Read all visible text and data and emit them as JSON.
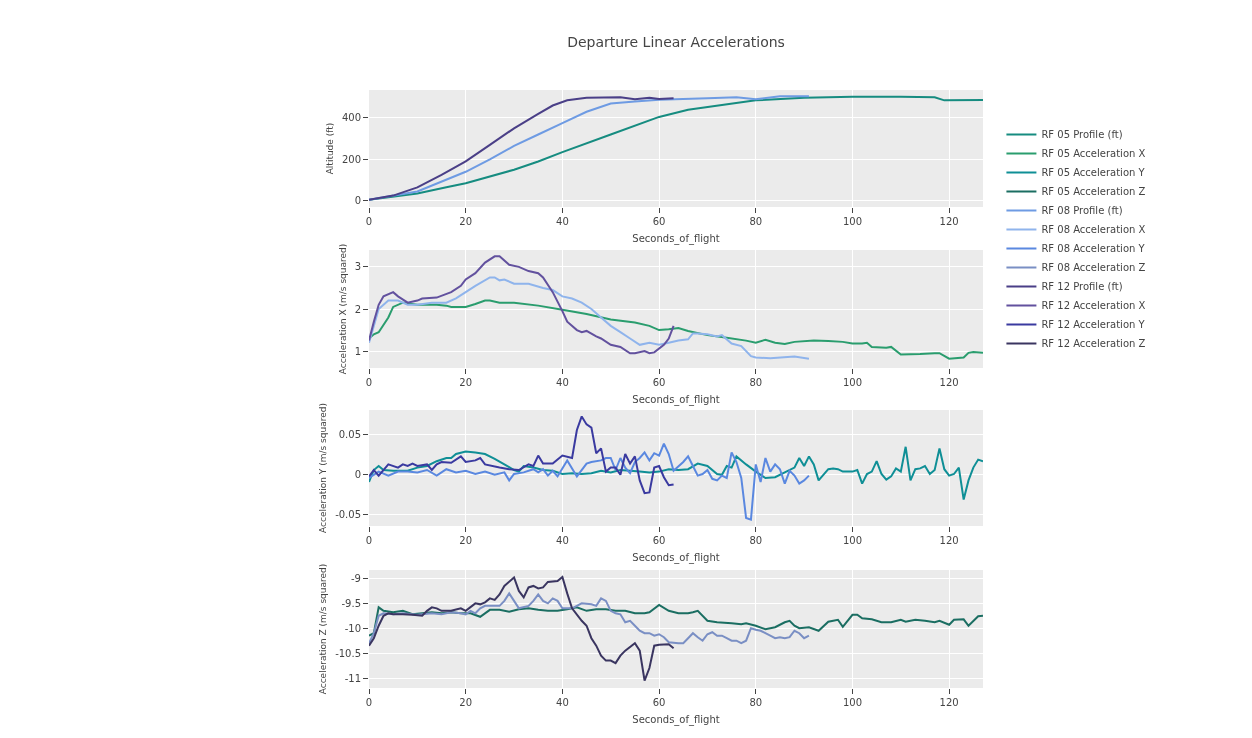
{
  "chart_data": [
    {
      "type": "line",
      "title": "Departure Linear Accelerations",
      "xlabel": "Seconds_of_flight",
      "ylabel": "Altitude (ft)",
      "xlim": [
        0,
        127
      ],
      "xticks": [
        0,
        20,
        40,
        60,
        80,
        100,
        120
      ],
      "ylim": [
        -30,
        535
      ],
      "yticks": [
        0,
        200,
        400
      ],
      "grid": true,
      "legend": "right",
      "series": [
        {
          "name": "RF 05 Profile (ft)",
          "color": "#168c80",
          "x": [
            0,
            10,
            16,
            20,
            30,
            35,
            40,
            50,
            60,
            66,
            80,
            90,
            100,
            110,
            117,
            119,
            127
          ],
          "values": [
            5,
            35,
            65,
            85,
            150,
            190,
            235,
            320,
            405,
            440,
            485,
            497,
            502,
            502,
            500,
            485,
            487
          ]
        },
        {
          "name": "RF 08 Profile (ft)",
          "color": "#6e9be3",
          "x": [
            0,
            10,
            20,
            25,
            30,
            35,
            40,
            45,
            50,
            55,
            60,
            70,
            76,
            80,
            85,
            91
          ],
          "values": [
            5,
            45,
            140,
            200,
            265,
            320,
            375,
            430,
            470,
            480,
            488,
            495,
            500,
            490,
            505,
            505
          ]
        },
        {
          "name": "RF 12 Profile (ft)",
          "color": "#4a3f87",
          "x": [
            0,
            5,
            10,
            15,
            20,
            25,
            30,
            35,
            38,
            41,
            45,
            52,
            55,
            58,
            60,
            63
          ],
          "values": [
            5,
            25,
            65,
            125,
            190,
            270,
            350,
            420,
            460,
            485,
            497,
            500,
            490,
            498,
            492,
            495
          ]
        }
      ]
    },
    {
      "type": "line",
      "xlabel": "Seconds_of_flight",
      "ylabel": "Acceleration X (m/s squared)",
      "xlim": [
        0,
        127
      ],
      "xticks": [
        0,
        20,
        40,
        60,
        80,
        100,
        120
      ],
      "ylim": [
        0.6,
        3.4
      ],
      "yticks": [
        1,
        2,
        3
      ],
      "grid": true,
      "legend": "right",
      "series": [
        {
          "name": "RF 05 Acceleration X",
          "color": "#2a9d6e",
          "x": [
            0,
            1,
            2,
            4,
            5,
            7,
            10,
            14,
            16,
            17,
            20,
            22,
            24,
            25,
            27,
            30,
            35,
            40,
            45,
            50,
            55,
            58,
            60,
            62,
            64,
            66,
            70,
            74,
            78,
            80,
            82,
            84,
            86,
            88,
            92,
            95,
            98,
            100,
            102,
            103,
            104,
            107,
            108,
            110,
            114,
            117,
            118,
            120,
            123,
            124,
            125,
            127
          ],
          "values": [
            1.3,
            1.4,
            1.45,
            1.8,
            2.05,
            2.15,
            2.1,
            2.1,
            2.08,
            2.05,
            2.05,
            2.12,
            2.2,
            2.2,
            2.15,
            2.15,
            2.08,
            1.98,
            1.88,
            1.75,
            1.68,
            1.6,
            1.5,
            1.52,
            1.55,
            1.48,
            1.38,
            1.32,
            1.25,
            1.2,
            1.27,
            1.2,
            1.17,
            1.22,
            1.25,
            1.24,
            1.22,
            1.18,
            1.18,
            1.2,
            1.1,
            1.08,
            1.1,
            0.92,
            0.93,
            0.95,
            0.95,
            0.82,
            0.85,
            0.96,
            0.98,
            0.96
          ]
        },
        {
          "name": "RF 08 Acceleration X",
          "color": "#8fb4ec",
          "x": [
            0,
            1,
            2,
            4,
            6,
            8,
            10,
            13,
            16,
            18,
            20,
            22,
            25,
            26,
            27,
            28,
            30,
            33,
            36,
            38,
            40,
            42,
            44,
            46,
            48,
            50,
            52,
            54,
            56,
            58,
            60,
            62,
            64,
            66,
            67,
            68,
            70,
            72,
            73,
            75,
            77,
            79,
            80,
            83,
            88,
            91
          ],
          "values": [
            1.2,
            1.6,
            2.0,
            2.2,
            2.2,
            2.1,
            2.1,
            2.15,
            2.15,
            2.25,
            2.4,
            2.55,
            2.75,
            2.75,
            2.68,
            2.7,
            2.6,
            2.6,
            2.5,
            2.45,
            2.3,
            2.25,
            2.15,
            2.0,
            1.8,
            1.6,
            1.45,
            1.3,
            1.15,
            1.2,
            1.15,
            1.2,
            1.25,
            1.28,
            1.42,
            1.42,
            1.4,
            1.35,
            1.38,
            1.18,
            1.12,
            0.88,
            0.85,
            0.83,
            0.87,
            0.82
          ]
        },
        {
          "name": "RF 12 Acceleration X",
          "color": "#62519e",
          "x": [
            0,
            1,
            2,
            3,
            5,
            6,
            8,
            10,
            11,
            14,
            17,
            19,
            20,
            22,
            24,
            26,
            27,
            29,
            31,
            33,
            35,
            36,
            38,
            40,
            41,
            43,
            44,
            45,
            47,
            48,
            50,
            52,
            54,
            55,
            57,
            58,
            59,
            61,
            62,
            63
          ],
          "values": [
            1.25,
            1.7,
            2.1,
            2.3,
            2.4,
            2.3,
            2.15,
            2.2,
            2.25,
            2.27,
            2.4,
            2.55,
            2.7,
            2.85,
            3.1,
            3.25,
            3.25,
            3.05,
            3.0,
            2.9,
            2.85,
            2.75,
            2.4,
            1.95,
            1.7,
            1.5,
            1.45,
            1.48,
            1.35,
            1.3,
            1.15,
            1.1,
            0.95,
            0.95,
            1.0,
            0.95,
            0.97,
            1.15,
            1.3,
            1.6
          ]
        }
      ]
    },
    {
      "type": "line",
      "xlabel": "Seconds_of_flight",
      "ylabel": "Acceleration Y (m/s squared)",
      "xlim": [
        0,
        127
      ],
      "xticks": [
        0,
        20,
        40,
        60,
        80,
        100,
        120
      ],
      "ylim": [
        -0.065,
        0.08
      ],
      "yticks": [
        -0.05,
        0,
        0.05
      ],
      "grid": true,
      "legend": "right",
      "series": [
        {
          "name": "RF 05 Acceleration Y",
          "color": "#0f8f96",
          "x": [
            0,
            1,
            2,
            3,
            5,
            8,
            10,
            12,
            14,
            16,
            17,
            18,
            20,
            22,
            24,
            26,
            28,
            30,
            31,
            32,
            34,
            36,
            38,
            40,
            42,
            44,
            46,
            48,
            50,
            52,
            54,
            56,
            58,
            60,
            62,
            64,
            66,
            68,
            70,
            72,
            73,
            74,
            75,
            76,
            78,
            80,
            82,
            84,
            86,
            88,
            89,
            90,
            91,
            92,
            93,
            95,
            96,
            97,
            98,
            100,
            101,
            102,
            103,
            104,
            105,
            106,
            107,
            108,
            109,
            110,
            111,
            112,
            113,
            114,
            115,
            116,
            117,
            118,
            119,
            120,
            121,
            122,
            123,
            124,
            125,
            126,
            127
          ],
          "values": [
            -0.01,
            0.005,
            0.01,
            0.005,
            0.004,
            0.004,
            0.008,
            0.01,
            0.016,
            0.02,
            0.02,
            0.025,
            0.028,
            0.027,
            0.025,
            0.019,
            0.012,
            0.005,
            0.003,
            0.01,
            0.008,
            0.005,
            0.004,
            0.0,
            0.001,
            0.0,
            0.001,
            0.004,
            0.002,
            0.005,
            0.004,
            0.003,
            0.002,
            0.003,
            0.006,
            0.005,
            0.006,
            0.013,
            0.01,
            0.0,
            -0.001,
            0.01,
            0.008,
            0.022,
            0.012,
            0.003,
            -0.005,
            -0.004,
            0.002,
            0.008,
            0.02,
            0.01,
            0.022,
            0.012,
            -0.008,
            0.006,
            0.007,
            0.006,
            0.003,
            0.003,
            0.005,
            -0.012,
            0.0,
            0.003,
            0.016,
            0.0,
            -0.007,
            -0.003,
            0.007,
            0.003,
            0.034,
            -0.008,
            0.006,
            0.007,
            0.01,
            0.0,
            0.005,
            0.032,
            0.006,
            -0.002,
            0.0,
            0.008,
            -0.032,
            -0.008,
            0.008,
            0.018,
            0.016
          ]
        },
        {
          "name": "RF 08 Acceleration Y",
          "color": "#5a88e0",
          "x": [
            0,
            2,
            4,
            6,
            8,
            10,
            12,
            14,
            16,
            18,
            20,
            22,
            24,
            26,
            28,
            29,
            30,
            32,
            34,
            35,
            36,
            37,
            38,
            39,
            41,
            43,
            45,
            46,
            48,
            49,
            50,
            51,
            52,
            53,
            54,
            55,
            56,
            57,
            58,
            59,
            60,
            61,
            62,
            63,
            65,
            66,
            67,
            68,
            69,
            70,
            71,
            72,
            73,
            74,
            75,
            76,
            77,
            78,
            79,
            80,
            81,
            82,
            83,
            84,
            85,
            86,
            87,
            88,
            89,
            90,
            91
          ],
          "values": [
            -0.005,
            0.003,
            -0.002,
            0.003,
            0.003,
            0.002,
            0.005,
            -0.002,
            0.006,
            0.002,
            0.004,
            0.0,
            0.003,
            -0.001,
            0.002,
            -0.008,
            0.0,
            0.002,
            0.006,
            0.002,
            0.006,
            -0.002,
            0.004,
            -0.003,
            0.017,
            -0.003,
            0.013,
            0.015,
            0.017,
            0.02,
            0.02,
            0.005,
            0.02,
            0.008,
            0.001,
            0.015,
            0.02,
            0.027,
            0.017,
            0.026,
            0.023,
            0.038,
            0.025,
            0.004,
            0.015,
            0.022,
            0.01,
            -0.002,
            0.0,
            0.005,
            -0.006,
            -0.008,
            -0.002,
            -0.005,
            0.027,
            0.015,
            -0.005,
            -0.055,
            -0.057,
            0.012,
            -0.01,
            0.02,
            0.003,
            0.012,
            0.006,
            -0.012,
            0.004,
            -0.002,
            -0.012,
            -0.008,
            -0.002
          ]
        },
        {
          "name": "RF 12 Acceleration Y",
          "color": "#3a3aa0",
          "x": [
            0,
            1,
            2,
            4,
            6,
            7,
            8,
            9,
            10,
            12,
            13,
            14,
            15,
            17,
            19,
            20,
            22,
            23,
            24,
            27,
            29,
            31,
            33,
            34,
            35,
            36,
            38,
            39,
            40,
            42,
            43,
            44,
            45,
            46,
            47,
            48,
            49,
            50,
            51,
            52,
            53,
            54,
            55,
            56,
            57,
            58,
            59,
            60,
            61,
            62,
            63
          ],
          "values": [
            -0.003,
            0.005,
            -0.002,
            0.012,
            0.008,
            0.012,
            0.01,
            0.013,
            0.01,
            0.012,
            0.005,
            0.012,
            0.015,
            0.014,
            0.022,
            0.015,
            0.017,
            0.02,
            0.012,
            0.008,
            0.006,
            0.005,
            0.012,
            0.01,
            0.023,
            0.013,
            0.013,
            0.018,
            0.023,
            0.02,
            0.055,
            0.072,
            0.062,
            0.058,
            0.026,
            0.032,
            0.003,
            0.008,
            0.008,
            -0.001,
            0.025,
            0.013,
            0.022,
            -0.008,
            -0.024,
            -0.023,
            0.008,
            0.01,
            -0.004,
            -0.014,
            -0.013
          ]
        }
      ]
    },
    {
      "type": "line",
      "xlabel": "Seconds_of_flight",
      "ylabel": "Acceleration Z (m/s squared)",
      "xlim": [
        0,
        127
      ],
      "xticks": [
        0,
        20,
        40,
        60,
        80,
        100,
        120
      ],
      "ylim": [
        -11.2,
        -8.83
      ],
      "yticks": [
        -11,
        -10.5,
        -10,
        -9.5,
        -9
      ],
      "grid": true,
      "legend": "right",
      "series": [
        {
          "name": "RF 05 Acceleration Z",
          "color": "#1b6e62",
          "x": [
            0,
            1,
            2,
            3,
            5,
            7,
            9,
            11,
            13,
            15,
            17,
            19,
            21,
            23,
            25,
            27,
            29,
            31,
            33,
            35,
            37,
            39,
            41,
            43,
            45,
            47,
            49,
            51,
            53,
            55,
            57,
            58,
            60,
            62,
            64,
            66,
            67,
            68,
            70,
            72,
            75,
            77,
            78,
            80,
            82,
            84,
            86,
            87,
            88,
            89,
            91,
            93,
            95,
            97,
            98,
            100,
            101,
            102,
            104,
            106,
            108,
            110,
            111,
            113,
            115,
            117,
            118,
            120,
            121,
            123,
            124,
            126,
            127
          ],
          "values": [
            -10.15,
            -10.1,
            -9.58,
            -9.65,
            -9.68,
            -9.65,
            -9.72,
            -9.7,
            -9.68,
            -9.7,
            -9.68,
            -9.7,
            -9.7,
            -9.77,
            -9.63,
            -9.63,
            -9.67,
            -9.62,
            -9.6,
            -9.63,
            -9.65,
            -9.65,
            -9.62,
            -9.58,
            -9.65,
            -9.62,
            -9.62,
            -9.65,
            -9.65,
            -9.7,
            -9.7,
            -9.68,
            -9.53,
            -9.65,
            -9.7,
            -9.7,
            -9.68,
            -9.65,
            -9.85,
            -9.88,
            -9.9,
            -9.92,
            -9.9,
            -9.95,
            -10.02,
            -9.98,
            -9.88,
            -9.85,
            -9.95,
            -10.0,
            -9.98,
            -10.05,
            -9.87,
            -9.83,
            -9.97,
            -9.73,
            -9.73,
            -9.8,
            -9.82,
            -9.88,
            -9.88,
            -9.83,
            -9.87,
            -9.83,
            -9.85,
            -9.88,
            -9.85,
            -9.93,
            -9.83,
            -9.82,
            -9.95,
            -9.76,
            -9.75
          ]
        },
        {
          "name": "RF 08 Acceleration Z",
          "color": "#7a8fc4",
          "x": [
            0,
            1,
            2,
            3,
            5,
            7,
            10,
            13,
            15,
            17,
            19,
            20,
            21,
            22,
            23,
            24,
            26,
            27,
            28,
            29,
            30,
            31,
            33,
            34,
            35,
            36,
            37,
            38,
            39,
            40,
            42,
            44,
            46,
            47,
            48,
            49,
            50,
            51,
            52,
            53,
            54,
            55,
            56,
            57,
            58,
            59,
            60,
            61,
            62,
            64,
            65,
            66,
            67,
            68,
            69,
            70,
            71,
            72,
            73,
            74,
            75,
            76,
            77,
            78,
            79,
            80,
            81,
            82,
            83,
            84,
            85,
            86,
            87,
            88,
            89,
            90,
            91
          ],
          "values": [
            -10.3,
            -10.1,
            -9.75,
            -9.7,
            -9.72,
            -9.7,
            -9.73,
            -9.7,
            -9.72,
            -9.68,
            -9.7,
            -9.72,
            -9.65,
            -9.7,
            -9.6,
            -9.55,
            -9.55,
            -9.55,
            -9.45,
            -9.3,
            -9.45,
            -9.6,
            -9.55,
            -9.45,
            -9.32,
            -9.45,
            -9.5,
            -9.4,
            -9.45,
            -9.6,
            -9.6,
            -9.5,
            -9.52,
            -9.55,
            -9.4,
            -9.45,
            -9.65,
            -9.7,
            -9.72,
            -9.88,
            -9.85,
            -9.95,
            -10.05,
            -10.1,
            -10.1,
            -10.15,
            -10.12,
            -10.18,
            -10.28,
            -10.3,
            -10.3,
            -10.2,
            -10.1,
            -10.18,
            -10.25,
            -10.12,
            -10.08,
            -10.15,
            -10.15,
            -10.2,
            -10.25,
            -10.25,
            -10.3,
            -10.25,
            -10.0,
            -10.03,
            -10.05,
            -10.1,
            -10.15,
            -10.2,
            -10.18,
            -10.2,
            -10.18,
            -10.05,
            -10.1,
            -10.2,
            -10.15
          ]
        },
        {
          "name": "RF 12 Acceleration Z",
          "color": "#3a3560",
          "x": [
            0,
            1,
            2,
            3,
            4,
            5,
            7,
            9,
            11,
            12,
            13,
            14,
            15,
            17,
            19,
            20,
            22,
            23,
            24,
            25,
            26,
            27,
            28,
            30,
            31,
            32,
            33,
            34,
            35,
            36,
            37,
            39,
            40,
            41,
            42,
            44,
            45,
            46,
            47,
            48,
            49,
            50,
            51,
            52,
            53,
            55,
            56,
            57,
            58,
            59,
            60,
            62,
            63
          ],
          "values": [
            -10.35,
            -10.2,
            -9.95,
            -9.75,
            -9.7,
            -9.72,
            -9.72,
            -9.73,
            -9.75,
            -9.65,
            -9.58,
            -9.6,
            -9.65,
            -9.65,
            -9.6,
            -9.65,
            -9.5,
            -9.52,
            -9.48,
            -9.4,
            -9.43,
            -9.32,
            -9.15,
            -8.98,
            -9.25,
            -9.38,
            -9.18,
            -9.15,
            -9.2,
            -9.18,
            -9.07,
            -9.05,
            -8.97,
            -9.3,
            -9.6,
            -9.85,
            -9.95,
            -10.2,
            -10.35,
            -10.55,
            -10.65,
            -10.65,
            -10.7,
            -10.55,
            -10.45,
            -10.3,
            -10.45,
            -11.05,
            -10.8,
            -10.35,
            -10.33,
            -10.32,
            -10.4
          ]
        }
      ]
    }
  ]
}
